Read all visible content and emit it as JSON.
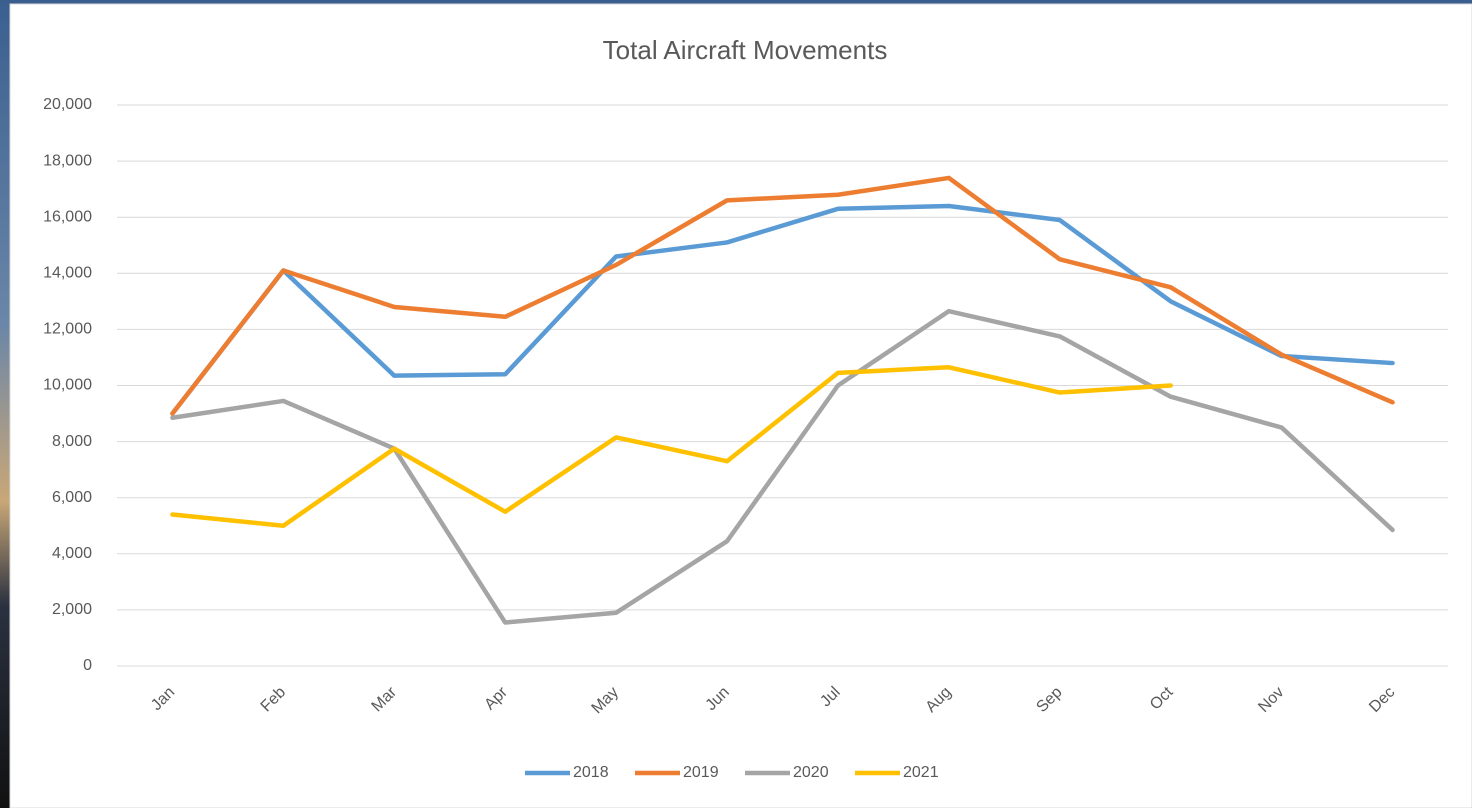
{
  "chart_data": {
    "type": "line",
    "title": "Total Aircraft Movements",
    "categories": [
      "Jan",
      "Feb",
      "Mar",
      "Apr",
      "May",
      "Jun",
      "Jul",
      "Aug",
      "Sep",
      "Oct",
      "Nov",
      "Dec"
    ],
    "series": [
      {
        "name": "2018",
        "color": "#5b9bd5",
        "values": [
          9000,
          14100,
          10350,
          10400,
          14600,
          15100,
          16300,
          16400,
          15900,
          13000,
          11050,
          10800
        ]
      },
      {
        "name": "2019",
        "color": "#ed7d31",
        "values": [
          9000,
          14100,
          12800,
          12450,
          14300,
          16600,
          16800,
          17400,
          14500,
          13500,
          11100,
          9400
        ]
      },
      {
        "name": "2020",
        "color": "#a5a5a5",
        "values": [
          8850,
          9450,
          7750,
          1550,
          1900,
          4450,
          10000,
          12650,
          11750,
          9600,
          8500,
          4850
        ]
      },
      {
        "name": "2021",
        "color": "#ffc000",
        "values": [
          5400,
          5000,
          7750,
          5500,
          8150,
          7300,
          10450,
          10650,
          9750,
          10000,
          null,
          null
        ]
      }
    ],
    "ylim": [
      0,
      20000
    ],
    "yticks": [
      0,
      {
        "value": 2000,
        "label": "2,000"
      },
      {
        "value": 4000,
        "label": "4,000"
      },
      {
        "value": 6000,
        "label": "6,000"
      },
      {
        "value": 8000,
        "label": "8,000"
      },
      {
        "value": 10000,
        "label": "10,000"
      },
      {
        "value": 12000,
        "label": "12,000"
      },
      {
        "value": 14000,
        "label": "14,000"
      },
      {
        "value": 16000,
        "label": "16,000"
      },
      {
        "value": 18000,
        "label": "18,000"
      },
      {
        "value": 20000,
        "label": "20,000"
      }
    ],
    "grid": true,
    "legend": "bottom"
  }
}
